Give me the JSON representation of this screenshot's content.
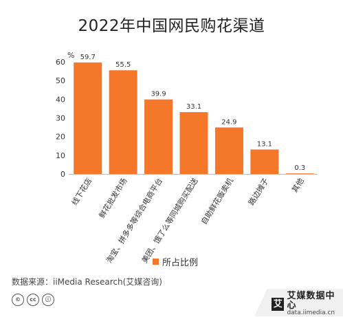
{
  "title": "2022年中国网民购花渠道",
  "chart_data": {
    "type": "bar",
    "unit_label": "%",
    "categories": [
      "线下花店",
      "鲜花批发市场",
      "淘宝、拼多多等综合电商平台",
      "美团、饿了么等同城购买配送",
      "自助鲜花贩卖机",
      "路边摊子",
      "其他"
    ],
    "series": [
      {
        "name": "所占比例",
        "values": [
          59.7,
          55.5,
          39.9,
          33.1,
          24.9,
          13.1,
          0.3
        ]
      }
    ],
    "value_labels": [
      "59.7",
      "55.5",
      "39.9",
      "33.1",
      "24.9",
      "13.1",
      "0.3"
    ],
    "yticks": [
      "0",
      "10",
      "20",
      "30",
      "40",
      "50",
      "60"
    ],
    "ylim": [
      0,
      60
    ],
    "grid": false,
    "legend_position": "bottom-center",
    "bar_color": "#f4772a"
  },
  "legend": {
    "label": "所占比例"
  },
  "source": "数据来源：iiMedia Research(艾媒咨询)",
  "license_icons": [
    "©",
    "cc",
    "ⓘ"
  ],
  "brand": {
    "logo_char": "艾",
    "name": "艾媒数据中心",
    "url": "data.iimedia.cn"
  }
}
